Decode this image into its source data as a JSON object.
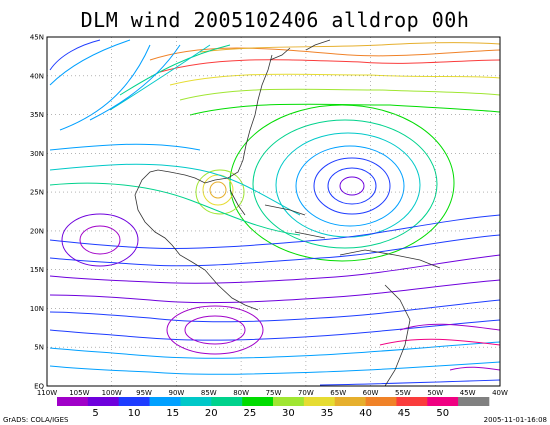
{
  "title": "DLM wind 2005102406 alldrop 00h",
  "credit": "GrADS: COLA/IGES",
  "timestamp": "2005-11-01-16:08",
  "lat_labels": [
    "45N",
    "40N",
    "35N",
    "30N",
    "25N",
    "20N",
    "15N",
    "10N",
    "5N",
    "EQ"
  ],
  "lon_labels": [
    "110W",
    "105W",
    "100W",
    "95W",
    "90W",
    "85W",
    "80W",
    "75W",
    "70W",
    "65W",
    "60W",
    "55W",
    "50W",
    "45W",
    "40W"
  ],
  "colorbar": {
    "colors": [
      "#a000c8",
      "#6e00dc",
      "#1e3cff",
      "#00a0ff",
      "#00c8c8",
      "#00d28c",
      "#00dc00",
      "#a0e632",
      "#e6dc32",
      "#e6af2d",
      "#f08228",
      "#fa3c3c",
      "#f00082",
      "#808080"
    ],
    "labels": [
      "5",
      "10",
      "15",
      "20",
      "25",
      "30",
      "35",
      "40",
      "45",
      "50"
    ]
  },
  "map_bounds": {
    "lon_min": -110,
    "lon_max": -40,
    "lat_min": 0,
    "lat_max": 45
  },
  "features": [
    {
      "name": "anticyclone-center",
      "lon": -62,
      "lat": 25.5
    },
    {
      "name": "cyclone-beta",
      "lon": -85,
      "lat": 25
    }
  ]
}
